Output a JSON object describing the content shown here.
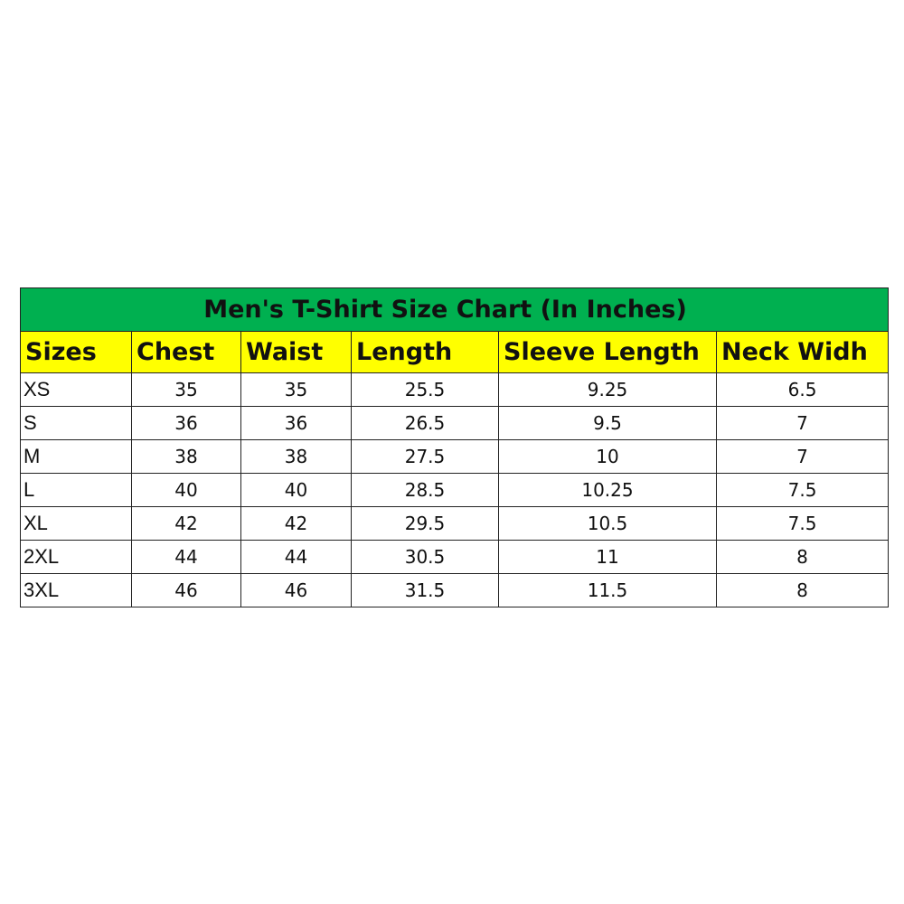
{
  "title": "Men's T-Shirt Size Chart (In Inches)",
  "headers": [
    "Sizes",
    "Chest",
    "Waist",
    "Length",
    "Sleeve Length",
    "Neck Widh"
  ],
  "rows": [
    [
      "XS",
      "35",
      "35",
      "25.5",
      "9.25",
      "6.5"
    ],
    [
      "S",
      "36",
      "36",
      "26.5",
      "9.5",
      "7"
    ],
    [
      "M",
      "38",
      "38",
      "27.5",
      "10",
      "7"
    ],
    [
      "L",
      "40",
      "40",
      "28.5",
      "10.25",
      "7.5"
    ],
    [
      "XL",
      "42",
      "42",
      "29.5",
      "10.5",
      "7.5"
    ],
    [
      "2XL",
      "44",
      "44",
      "30.5",
      "11",
      "8"
    ],
    [
      "3XL",
      "46",
      "46",
      "31.5",
      "11.5",
      "8"
    ]
  ],
  "colors": {
    "title_bg": "#00b050",
    "header_bg": "#ffff00"
  }
}
